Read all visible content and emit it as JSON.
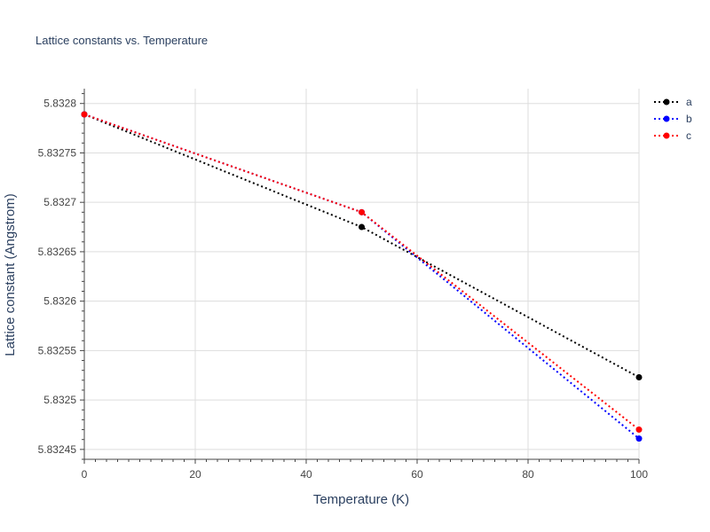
{
  "chart_data": {
    "type": "line",
    "title": "Lattice constants vs. Temperature",
    "xlabel": "Temperature (K)",
    "ylabel": "Lattice constant (Angstrom)",
    "x": [
      0,
      50,
      100
    ],
    "xlim": [
      0,
      100
    ],
    "ylim": [
      5.83244,
      5.832815
    ],
    "x_ticks": [
      0,
      20,
      40,
      60,
      80,
      100
    ],
    "x_tick_labels": [
      "0",
      "20",
      "40",
      "60",
      "80",
      "100"
    ],
    "y_ticks": [
      5.83245,
      5.8325,
      5.83255,
      5.8326,
      5.83265,
      5.8327,
      5.83275,
      5.8328
    ],
    "y_tick_labels": [
      "5.83245",
      "5.8325",
      "5.83255",
      "5.8326",
      "5.83265",
      "5.8327",
      "5.83275",
      "5.8328"
    ],
    "grid": true,
    "legend_position": "top-right",
    "line_style": "dotted",
    "series": [
      {
        "name": "a",
        "color": "#000000",
        "values": [
          5.832789,
          5.832675,
          5.832523
        ]
      },
      {
        "name": "b",
        "color": "#0000ff",
        "values": [
          5.832789,
          5.83269,
          5.832461
        ]
      },
      {
        "name": "c",
        "color": "#ff0000",
        "values": [
          5.832789,
          5.83269,
          5.83247
        ]
      }
    ]
  }
}
